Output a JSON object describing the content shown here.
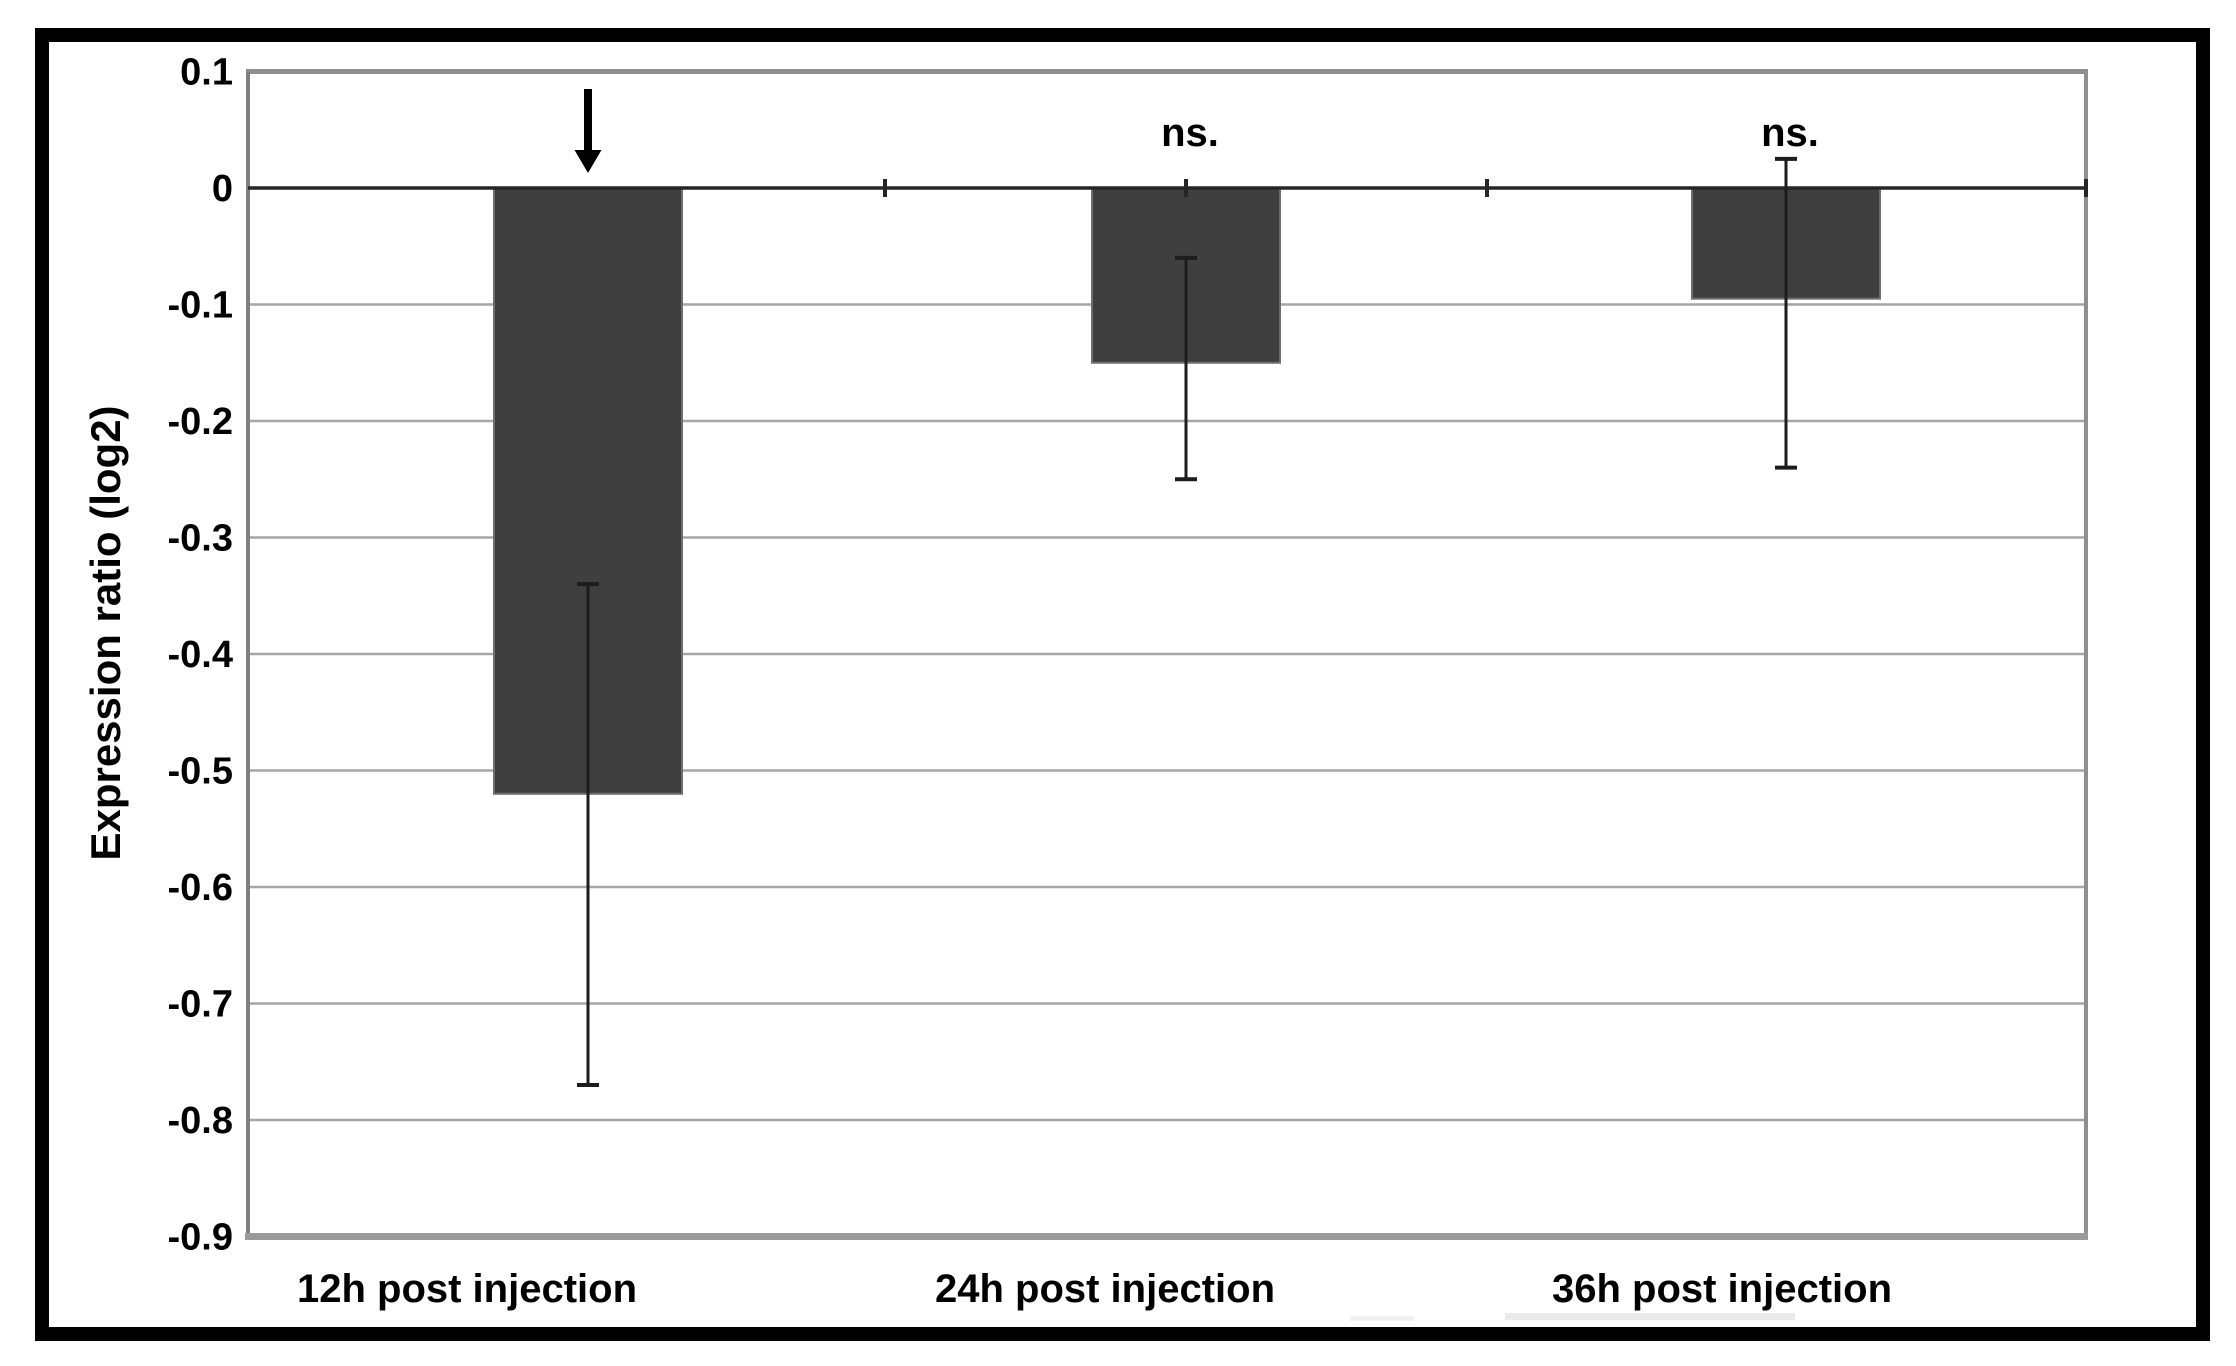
{
  "figure": {
    "background": "#ffffff",
    "frame_color": "#000000"
  },
  "chart_data": {
    "type": "bar",
    "title": "",
    "ylabel": "Expression ratio (log2)",
    "xlabel": "",
    "categories": [
      "12h post injection",
      "24h post injection",
      "36h post injection"
    ],
    "values": [
      -0.52,
      -0.15,
      -0.095
    ],
    "error_whiskers": [
      {
        "upper": -0.34,
        "lower": -0.77
      },
      {
        "upper": -0.06,
        "lower": -0.25
      },
      {
        "upper": 0.025,
        "lower": -0.24
      }
    ],
    "annotations": [
      {
        "category_index": 0,
        "kind": "arrow-down",
        "label": ""
      },
      {
        "category_index": 1,
        "kind": "text",
        "label": "ns."
      },
      {
        "category_index": 2,
        "kind": "text",
        "label": "ns."
      }
    ],
    "ylim": [
      -0.9,
      0.1
    ],
    "ytick_values": [
      0.1,
      0,
      -0.1,
      -0.2,
      -0.3,
      -0.4,
      -0.5,
      -0.6,
      -0.7,
      -0.8,
      -0.9
    ],
    "ytick_labels": [
      "0.1",
      "0",
      "-0.1",
      "-0.2",
      "-0.3",
      "-0.4",
      "-0.5",
      "-0.6",
      "-0.7",
      "-0.8",
      "-0.9"
    ],
    "grid": "horizontal",
    "legend": "none",
    "colors": {
      "bar_fill": "#3f3f3f",
      "bar_stroke": "#6e6e6e",
      "zero_line": "#262626",
      "gridline": "#a6a6a6",
      "plot_border": "#8f8f8f",
      "axis_line": "#7f7f7f",
      "bottom_axis": "#9a9a9a",
      "error_bar": "#1c1c1c",
      "arrow": "#000000",
      "text": "#000000"
    }
  }
}
